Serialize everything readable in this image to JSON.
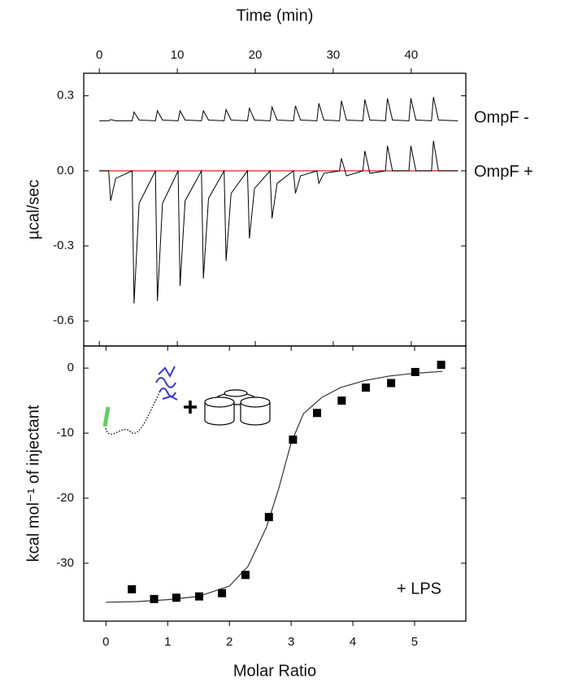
{
  "chart_data": [
    {
      "type": "line",
      "xlabel": "Time (min)",
      "ylabel": "µcal/sec",
      "xlim": [
        -2,
        47
      ],
      "xticks": [
        0,
        10,
        20,
        30,
        40
      ],
      "ylim": [
        -0.7,
        0.39
      ],
      "yticks": [
        0.3,
        {
          "value": 0,
          "label": "0.0"
        },
        -0.3,
        -0.6
      ],
      "series": [
        {
          "name": "OmpF -",
          "color": "#000000",
          "x": [
            0,
            1.2,
            1.45,
            2.1,
            4.2,
            4.45,
            5.1,
            7.2,
            7.45,
            8.1,
            10.1,
            10.35,
            11.0,
            13.1,
            13.35,
            14.0,
            16.0,
            16.25,
            16.9,
            19.0,
            19.25,
            19.9,
            21.9,
            22.15,
            22.8,
            24.9,
            25.15,
            25.8,
            27.9,
            28.15,
            28.8,
            30.8,
            31.05,
            31.7,
            33.8,
            34.05,
            34.7,
            36.7,
            36.95,
            37.6,
            39.7,
            39.95,
            40.6,
            42.6,
            42.85,
            43.5,
            46
          ],
          "values": [
            0.2,
            0.2,
            0.205,
            0.2,
            0.2,
            0.235,
            0.203,
            0.2,
            0.24,
            0.203,
            0.2,
            0.24,
            0.203,
            0.2,
            0.24,
            0.203,
            0.2,
            0.245,
            0.203,
            0.2,
            0.25,
            0.203,
            0.2,
            0.255,
            0.203,
            0.2,
            0.26,
            0.203,
            0.2,
            0.27,
            0.203,
            0.2,
            0.28,
            0.203,
            0.2,
            0.285,
            0.203,
            0.2,
            0.29,
            0.203,
            0.2,
            0.29,
            0.203,
            0.2,
            0.295,
            0.203,
            0.2
          ]
        },
        {
          "name": "OmpF +",
          "color": "#000000",
          "x": [
            0,
            1.2,
            1.45,
            2.1,
            4.2,
            4.45,
            5.1,
            7.2,
            7.45,
            8.1,
            10.1,
            10.35,
            11.0,
            13.1,
            13.35,
            14.0,
            16.0,
            16.25,
            16.9,
            19.0,
            19.25,
            19.9,
            21.9,
            22.15,
            22.8,
            24.9,
            25.15,
            25.8,
            27.9,
            28.15,
            28.8,
            30.8,
            31.05,
            31.7,
            33.8,
            34.05,
            34.7,
            36.7,
            36.95,
            37.6,
            39.7,
            39.95,
            40.6,
            42.6,
            42.85,
            43.5,
            46
          ],
          "values": [
            0,
            0,
            -0.12,
            -0.03,
            0,
            -0.53,
            -0.13,
            0,
            -0.52,
            -0.13,
            0,
            -0.46,
            -0.12,
            0,
            -0.43,
            -0.11,
            0,
            -0.36,
            -0.09,
            0,
            -0.27,
            -0.07,
            0,
            -0.19,
            -0.05,
            0,
            -0.09,
            -0.02,
            0,
            -0.05,
            -0.01,
            0,
            0.05,
            -0.02,
            0,
            0.08,
            -0.01,
            0,
            0.1,
            0,
            0,
            0.1,
            0,
            0,
            0.12,
            0,
            0
          ]
        }
      ],
      "baseline": {
        "color": "#e02020",
        "x": [
          0,
          46
        ],
        "values": [
          0,
          0
        ]
      }
    },
    {
      "type": "scatter",
      "xlabel": "Molar Ratio",
      "ylabel": "kcal mol⁻¹ of injectant",
      "annotation": "+ LPS",
      "xlim": [
        -0.36,
        5.83
      ],
      "xticks": [
        0,
        1,
        2,
        3,
        4,
        5
      ],
      "ylim": [
        -38.9,
        3.4
      ],
      "yticks": [
        0,
        -10,
        -20,
        -30
      ],
      "points": {
        "color": "#000000",
        "x": [
          0.42,
          0.78,
          1.14,
          1.51,
          1.88,
          2.26,
          2.64,
          3.03,
          3.42,
          3.82,
          4.21,
          4.62,
          5.01,
          5.43
        ],
        "values": [
          -34.0,
          -35.5,
          -35.3,
          -35.1,
          -34.6,
          -31.8,
          -22.9,
          -11.0,
          -6.9,
          -5.0,
          -3.0,
          -2.3,
          -0.6,
          0.5
        ]
      },
      "fit": {
        "color": "#333333",
        "x": [
          0,
          0.5,
          1,
          1.5,
          2,
          2.3,
          2.6,
          2.8,
          3.0,
          3.2,
          3.5,
          3.8,
          4.2,
          4.6,
          5.0,
          5.45
        ],
        "values": [
          -36.0,
          -35.9,
          -35.6,
          -35.1,
          -33.5,
          -30.5,
          -24.5,
          -18.5,
          -11.5,
          -7.0,
          -4.5,
          -3.0,
          -1.9,
          -1.2,
          -0.8,
          -0.5
        ]
      }
    }
  ]
}
